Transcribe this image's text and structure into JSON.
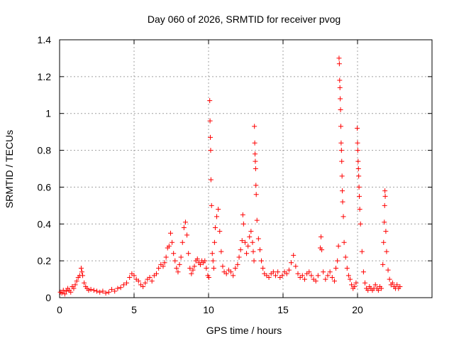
{
  "chart_data": {
    "type": "scatter",
    "title": "Day 060 of 2026, SRMTID for receiver pvog",
    "xlabel": "GPS time / hours",
    "ylabel": "SRMTID / TECUs",
    "xlim": [
      0,
      25
    ],
    "ylim": [
      0,
      1.4
    ],
    "x_ticks": [
      0,
      5,
      10,
      15,
      20
    ],
    "x_tick_labels": [
      "0",
      "5",
      "10",
      "15",
      "20"
    ],
    "y_ticks": [
      0,
      0.2,
      0.4,
      0.6,
      0.8,
      1.0,
      1.2,
      1.4
    ],
    "y_tick_labels": [
      "0",
      "0.2",
      "0.4",
      "0.6",
      "0.8",
      "1",
      "1.2",
      "1.4"
    ],
    "grid": true,
    "marker": "+",
    "color": "#ff0000",
    "series": [
      {
        "name": "SRMTID",
        "points": [
          [
            0.05,
            0.03
          ],
          [
            0.15,
            0.025
          ],
          [
            0.25,
            0.04
          ],
          [
            0.35,
            0.02
          ],
          [
            0.45,
            0.035
          ],
          [
            0.55,
            0.05
          ],
          [
            0.65,
            0.04
          ],
          [
            0.75,
            0.03
          ],
          [
            0.85,
            0.06
          ],
          [
            0.95,
            0.05
          ],
          [
            1.05,
            0.07
          ],
          [
            1.15,
            0.09
          ],
          [
            1.25,
            0.11
          ],
          [
            1.35,
            0.12
          ],
          [
            1.45,
            0.16
          ],
          [
            1.5,
            0.14
          ],
          [
            1.55,
            0.12
          ],
          [
            1.65,
            0.08
          ],
          [
            1.75,
            0.06
          ],
          [
            1.85,
            0.05
          ],
          [
            1.95,
            0.04
          ],
          [
            2.1,
            0.045
          ],
          [
            2.3,
            0.04
          ],
          [
            2.5,
            0.035
          ],
          [
            2.7,
            0.03
          ],
          [
            2.9,
            0.035
          ],
          [
            3.1,
            0.025
          ],
          [
            3.3,
            0.03
          ],
          [
            3.5,
            0.045
          ],
          [
            3.7,
            0.035
          ],
          [
            3.9,
            0.05
          ],
          [
            4.1,
            0.055
          ],
          [
            4.3,
            0.07
          ],
          [
            4.5,
            0.08
          ],
          [
            4.7,
            0.11
          ],
          [
            4.85,
            0.13
          ],
          [
            5.0,
            0.12
          ],
          [
            5.15,
            0.1
          ],
          [
            5.3,
            0.09
          ],
          [
            5.45,
            0.07
          ],
          [
            5.6,
            0.06
          ],
          [
            5.75,
            0.08
          ],
          [
            5.9,
            0.1
          ],
          [
            6.05,
            0.11
          ],
          [
            6.2,
            0.09
          ],
          [
            6.35,
            0.12
          ],
          [
            6.5,
            0.13
          ],
          [
            6.65,
            0.16
          ],
          [
            6.8,
            0.18
          ],
          [
            6.95,
            0.17
          ],
          [
            7.05,
            0.19
          ],
          [
            7.15,
            0.22
          ],
          [
            7.25,
            0.27
          ],
          [
            7.35,
            0.28
          ],
          [
            7.45,
            0.35
          ],
          [
            7.55,
            0.3
          ],
          [
            7.65,
            0.24
          ],
          [
            7.75,
            0.2
          ],
          [
            7.85,
            0.16
          ],
          [
            7.95,
            0.14
          ],
          [
            8.05,
            0.18
          ],
          [
            8.15,
            0.22
          ],
          [
            8.25,
            0.3
          ],
          [
            8.35,
            0.38
          ],
          [
            8.45,
            0.41
          ],
          [
            8.55,
            0.34
          ],
          [
            8.65,
            0.24
          ],
          [
            8.75,
            0.16
          ],
          [
            8.85,
            0.13
          ],
          [
            8.95,
            0.15
          ],
          [
            9.05,
            0.17
          ],
          [
            9.15,
            0.2
          ],
          [
            9.25,
            0.21
          ],
          [
            9.35,
            0.19
          ],
          [
            9.45,
            0.18
          ],
          [
            9.55,
            0.2
          ],
          [
            9.65,
            0.19
          ],
          [
            9.75,
            0.2
          ],
          [
            9.85,
            0.16
          ],
          [
            9.95,
            0.12
          ],
          [
            10.02,
            0.11
          ],
          [
            10.08,
            1.07
          ],
          [
            10.1,
            0.96
          ],
          [
            10.12,
            0.87
          ],
          [
            10.14,
            0.8
          ],
          [
            10.16,
            0.64
          ],
          [
            10.2,
            0.5
          ],
          [
            10.25,
            0.24
          ],
          [
            10.3,
            0.2
          ],
          [
            10.35,
            0.16
          ],
          [
            10.4,
            0.3
          ],
          [
            10.45,
            0.38
          ],
          [
            10.55,
            0.44
          ],
          [
            10.65,
            0.48
          ],
          [
            10.75,
            0.36
          ],
          [
            10.85,
            0.25
          ],
          [
            10.95,
            0.17
          ],
          [
            11.05,
            0.14
          ],
          [
            11.2,
            0.13
          ],
          [
            11.35,
            0.15
          ],
          [
            11.5,
            0.14
          ],
          [
            11.65,
            0.12
          ],
          [
            11.8,
            0.16
          ],
          [
            11.95,
            0.18
          ],
          [
            12.05,
            0.22
          ],
          [
            12.15,
            0.26
          ],
          [
            12.25,
            0.31
          ],
          [
            12.3,
            0.45
          ],
          [
            12.35,
            0.4
          ],
          [
            12.45,
            0.3
          ],
          [
            12.55,
            0.24
          ],
          [
            12.65,
            0.28
          ],
          [
            12.75,
            0.33
          ],
          [
            12.85,
            0.36
          ],
          [
            12.95,
            0.3
          ],
          [
            13.0,
            0.25
          ],
          [
            13.05,
            0.2
          ],
          [
            13.08,
            0.93
          ],
          [
            13.1,
            0.84
          ],
          [
            13.12,
            0.78
          ],
          [
            13.14,
            0.74
          ],
          [
            13.16,
            0.7
          ],
          [
            13.18,
            0.61
          ],
          [
            13.2,
            0.56
          ],
          [
            13.25,
            0.42
          ],
          [
            13.35,
            0.32
          ],
          [
            13.45,
            0.26
          ],
          [
            13.55,
            0.2
          ],
          [
            13.65,
            0.16
          ],
          [
            13.75,
            0.13
          ],
          [
            13.9,
            0.12
          ],
          [
            14.05,
            0.11
          ],
          [
            14.2,
            0.13
          ],
          [
            14.35,
            0.14
          ],
          [
            14.5,
            0.12
          ],
          [
            14.65,
            0.14
          ],
          [
            14.8,
            0.11
          ],
          [
            14.95,
            0.12
          ],
          [
            15.1,
            0.14
          ],
          [
            15.25,
            0.13
          ],
          [
            15.4,
            0.15
          ],
          [
            15.55,
            0.19
          ],
          [
            15.7,
            0.23
          ],
          [
            15.85,
            0.17
          ],
          [
            16.0,
            0.13
          ],
          [
            16.15,
            0.11
          ],
          [
            16.3,
            0.12
          ],
          [
            16.45,
            0.1
          ],
          [
            16.6,
            0.13
          ],
          [
            16.75,
            0.14
          ],
          [
            16.9,
            0.12
          ],
          [
            17.05,
            0.1
          ],
          [
            17.2,
            0.09
          ],
          [
            17.35,
            0.12
          ],
          [
            17.5,
            0.27
          ],
          [
            17.55,
            0.33
          ],
          [
            17.6,
            0.26
          ],
          [
            17.7,
            0.14
          ],
          [
            17.85,
            0.1
          ],
          [
            18.0,
            0.12
          ],
          [
            18.15,
            0.14
          ],
          [
            18.3,
            0.11
          ],
          [
            18.45,
            0.09
          ],
          [
            18.55,
            0.16
          ],
          [
            18.65,
            0.2
          ],
          [
            18.72,
            0.28
          ],
          [
            18.76,
            1.3
          ],
          [
            18.78,
            1.27
          ],
          [
            18.8,
            1.18
          ],
          [
            18.82,
            1.14
          ],
          [
            18.84,
            1.08
          ],
          [
            18.86,
            1.02
          ],
          [
            18.88,
            0.93
          ],
          [
            18.9,
            0.84
          ],
          [
            18.92,
            0.8
          ],
          [
            18.94,
            0.74
          ],
          [
            18.96,
            0.66
          ],
          [
            18.98,
            0.58
          ],
          [
            19.0,
            0.52
          ],
          [
            19.05,
            0.44
          ],
          [
            19.1,
            0.3
          ],
          [
            19.2,
            0.22
          ],
          [
            19.3,
            0.16
          ],
          [
            19.4,
            0.12
          ],
          [
            19.5,
            0.1
          ],
          [
            19.6,
            0.07
          ],
          [
            19.7,
            0.05
          ],
          [
            19.8,
            0.06
          ],
          [
            19.9,
            0.08
          ],
          [
            19.98,
            0.92
          ],
          [
            20.0,
            0.84
          ],
          [
            20.02,
            0.8
          ],
          [
            20.04,
            0.74
          ],
          [
            20.06,
            0.7
          ],
          [
            20.08,
            0.66
          ],
          [
            20.1,
            0.6
          ],
          [
            20.12,
            0.55
          ],
          [
            20.15,
            0.48
          ],
          [
            20.2,
            0.4
          ],
          [
            20.3,
            0.25
          ],
          [
            20.4,
            0.14
          ],
          [
            20.5,
            0.08
          ],
          [
            20.6,
            0.05
          ],
          [
            20.7,
            0.04
          ],
          [
            20.8,
            0.06
          ],
          [
            20.9,
            0.05
          ],
          [
            21.0,
            0.04
          ],
          [
            21.1,
            0.05
          ],
          [
            21.2,
            0.07
          ],
          [
            21.3,
            0.05
          ],
          [
            21.4,
            0.04
          ],
          [
            21.5,
            0.06
          ],
          [
            21.6,
            0.05
          ],
          [
            21.7,
            0.18
          ],
          [
            21.75,
            0.3
          ],
          [
            21.8,
            0.41
          ],
          [
            21.82,
            0.5
          ],
          [
            21.84,
            0.58
          ],
          [
            21.86,
            0.55
          ],
          [
            21.9,
            0.36
          ],
          [
            21.95,
            0.25
          ],
          [
            22.05,
            0.15
          ],
          [
            22.15,
            0.1
          ],
          [
            22.25,
            0.07
          ],
          [
            22.35,
            0.08
          ],
          [
            22.45,
            0.06
          ],
          [
            22.55,
            0.05
          ],
          [
            22.65,
            0.07
          ],
          [
            22.75,
            0.05
          ],
          [
            22.85,
            0.06
          ]
        ]
      }
    ]
  }
}
